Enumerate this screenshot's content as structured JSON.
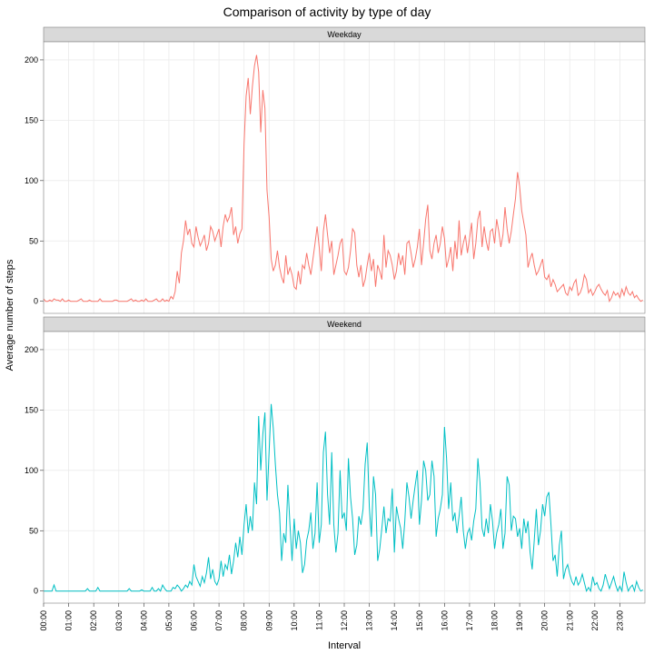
{
  "chart": {
    "type": "line",
    "title": "Comparison of activity by type of day",
    "title_fontsize": 14,
    "xlabel": "Interval",
    "ylabel": "Average number of steps",
    "label_fontsize": 11,
    "tick_fontsize": 9,
    "background_color": "#ffffff",
    "panel_bg": "#ffffff",
    "strip_bg": "#d9d9d9",
    "strip_border": "#808080",
    "panel_border": "#808080",
    "grid_color": "#ebebeb",
    "ylim": [
      -10,
      215
    ],
    "yticks": [
      0,
      50,
      100,
      150,
      200
    ],
    "xlim": [
      0,
      288
    ],
    "xticks_major": [
      0,
      12,
      24,
      36,
      48,
      60,
      72,
      84,
      96,
      108,
      120,
      132,
      144,
      156,
      168,
      180,
      192,
      204,
      216,
      228,
      240,
      252,
      264,
      276
    ],
    "xtick_labels": [
      "00:00",
      "01:00",
      "02:00",
      "03:00",
      "04:00",
      "05:00",
      "06:00",
      "07:00",
      "08:00",
      "09:00",
      "10:00",
      "11:00",
      "12:00",
      "13:00",
      "14:00",
      "15:00",
      "16:00",
      "17:00",
      "18:00",
      "19:00",
      "20:00",
      "21:00",
      "22:00",
      "23:00"
    ],
    "line_width": 1,
    "facets": [
      {
        "label": "Weekday",
        "color": "#f8766d",
        "data": [
          2,
          0,
          0,
          1,
          0,
          2,
          1,
          1,
          0,
          2,
          0,
          0,
          1,
          0,
          0,
          0,
          0,
          1,
          2,
          0,
          0,
          0,
          1,
          0,
          0,
          0,
          0,
          2,
          0,
          0,
          0,
          0,
          0,
          0,
          1,
          1,
          0,
          0,
          0,
          0,
          0,
          1,
          2,
          0,
          1,
          0,
          0,
          1,
          0,
          2,
          0,
          0,
          0,
          1,
          2,
          0,
          0,
          2,
          0,
          1,
          0,
          4,
          2,
          8,
          25,
          15,
          40,
          50,
          67,
          55,
          60,
          48,
          45,
          62,
          53,
          46,
          50,
          55,
          42,
          48,
          62,
          58,
          50,
          55,
          60,
          45,
          62,
          72,
          66,
          70,
          78,
          55,
          62,
          48,
          56,
          60,
          130,
          170,
          185,
          155,
          178,
          195,
          204,
          190,
          140,
          175,
          160,
          92,
          70,
          35,
          25,
          30,
          42,
          28,
          20,
          15,
          38,
          22,
          28,
          22,
          12,
          10,
          25,
          14,
          30,
          27,
          40,
          30,
          22,
          35,
          48,
          62,
          45,
          25,
          58,
          72,
          55,
          40,
          50,
          22,
          30,
          38,
          48,
          52,
          25,
          22,
          28,
          42,
          60,
          57,
          30,
          20,
          30,
          12,
          18,
          30,
          40,
          25,
          35,
          12,
          30,
          25,
          18,
          55,
          28,
          42,
          38,
          30,
          18,
          25,
          40,
          30,
          38,
          22,
          48,
          50,
          40,
          28,
          35,
          45,
          60,
          30,
          48,
          68,
          80,
          42,
          35,
          48,
          55,
          40,
          48,
          62,
          52,
          28,
          35,
          45,
          25,
          50,
          35,
          67,
          38,
          48,
          55,
          40,
          52,
          65,
          35,
          48,
          68,
          75,
          45,
          62,
          50,
          42,
          58,
          60,
          48,
          68,
          58,
          45,
          55,
          78,
          60,
          48,
          58,
          72,
          85,
          107,
          95,
          75,
          65,
          55,
          28,
          35,
          40,
          30,
          22,
          25,
          30,
          35,
          20,
          18,
          22,
          12,
          18,
          14,
          8,
          10,
          12,
          14,
          7,
          5,
          12,
          9,
          15,
          18,
          5,
          7,
          12,
          22,
          18,
          7,
          10,
          5,
          8,
          12,
          14,
          10,
          7,
          5,
          9,
          0,
          3,
          8,
          5,
          7,
          3,
          10,
          5,
          12,
          7,
          5,
          8,
          3,
          5,
          2,
          0,
          1
        ]
      },
      {
        "label": "Weekend",
        "color": "#00bfc4",
        "data": [
          0,
          0,
          0,
          0,
          0,
          5,
          0,
          0,
          0,
          0,
          0,
          0,
          0,
          0,
          0,
          0,
          0,
          0,
          0,
          0,
          0,
          2,
          0,
          0,
          0,
          0,
          3,
          0,
          0,
          0,
          0,
          0,
          0,
          0,
          0,
          0,
          0,
          0,
          0,
          0,
          0,
          2,
          0,
          0,
          0,
          0,
          0,
          1,
          0,
          0,
          0,
          0,
          3,
          0,
          0,
          2,
          0,
          5,
          2,
          0,
          0,
          0,
          3,
          2,
          5,
          3,
          0,
          2,
          5,
          3,
          8,
          5,
          22,
          12,
          8,
          4,
          12,
          7,
          15,
          28,
          10,
          18,
          8,
          5,
          10,
          25,
          12,
          22,
          18,
          30,
          14,
          25,
          40,
          28,
          45,
          30,
          55,
          72,
          48,
          62,
          50,
          90,
          72,
          145,
          100,
          130,
          148,
          75,
          115,
          155,
          135,
          105,
          80,
          65,
          25,
          48,
          40,
          88,
          55,
          25,
          60,
          35,
          50,
          40,
          15,
          22,
          42,
          50,
          65,
          35,
          48,
          90,
          40,
          55,
          115,
          132,
          80,
          55,
          115,
          55,
          32,
          48,
          100,
          60,
          65,
          50,
          110,
          78,
          60,
          30,
          38,
          62,
          55,
          68,
          105,
          123,
          70,
          45,
          95,
          80,
          25,
          35,
          52,
          70,
          48,
          60,
          58,
          85,
          32,
          70,
          60,
          52,
          35,
          58,
          90,
          78,
          60,
          75,
          88,
          100,
          55,
          75,
          108,
          100,
          75,
          80,
          108,
          95,
          45,
          60,
          68,
          80,
          136,
          110,
          68,
          90,
          58,
          65,
          48,
          62,
          78,
          50,
          35,
          48,
          52,
          42,
          58,
          68,
          110,
          90,
          52,
          45,
          60,
          48,
          72,
          58,
          35,
          48,
          55,
          68,
          35,
          48,
          95,
          88,
          50,
          62,
          60,
          45,
          52,
          35,
          60,
          48,
          58,
          32,
          18,
          42,
          68,
          38,
          50,
          72,
          62,
          78,
          82,
          55,
          25,
          30,
          12,
          38,
          50,
          10,
          18,
          22,
          14,
          8,
          5,
          12,
          5,
          8,
          14,
          7,
          0,
          3,
          0,
          12,
          5,
          7,
          2,
          0,
          5,
          14,
          8,
          2,
          7,
          12,
          5,
          0,
          4,
          0,
          16,
          7,
          0,
          3,
          5,
          0,
          8,
          3,
          0,
          1
        ]
      }
    ]
  }
}
